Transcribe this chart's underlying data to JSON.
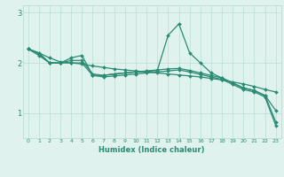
{
  "line1": {
    "x": [
      0,
      1,
      2,
      3,
      4,
      5,
      6,
      7,
      8,
      9,
      10,
      11,
      12,
      13,
      14,
      15,
      16,
      17,
      18,
      19,
      20,
      21,
      22,
      23
    ],
    "y": [
      2.28,
      2.2,
      2.0,
      2.0,
      2.1,
      2.15,
      1.75,
      1.75,
      1.78,
      1.8,
      1.82,
      1.83,
      1.85,
      2.55,
      2.78,
      2.2,
      2.0,
      1.8,
      1.7,
      1.6,
      1.5,
      1.45,
      1.35,
      1.05
    ]
  },
  "line2": {
    "x": [
      0,
      1,
      2,
      3,
      4,
      5,
      6,
      7,
      8,
      9,
      10,
      11,
      12,
      13,
      14,
      15,
      16,
      17,
      18,
      19,
      20,
      21,
      22,
      23
    ],
    "y": [
      2.28,
      2.18,
      2.0,
      2.0,
      2.05,
      2.05,
      1.78,
      1.75,
      1.78,
      1.8,
      1.82,
      1.84,
      1.86,
      1.88,
      1.89,
      1.85,
      1.8,
      1.75,
      1.7,
      1.6,
      1.5,
      1.45,
      1.35,
      0.82
    ]
  },
  "line3": {
    "x": [
      0,
      1,
      2,
      3,
      4,
      5,
      6,
      7,
      8,
      9,
      10,
      11,
      12,
      13,
      14,
      15,
      16,
      17,
      18,
      19,
      20,
      21,
      22,
      23
    ],
    "y": [
      2.28,
      2.15,
      2.0,
      2.0,
      2.0,
      2.0,
      1.75,
      1.72,
      1.74,
      1.76,
      1.78,
      1.8,
      1.82,
      1.84,
      1.86,
      1.82,
      1.77,
      1.72,
      1.67,
      1.57,
      1.47,
      1.42,
      1.32,
      0.75
    ]
  },
  "line4": {
    "x": [
      0,
      1,
      2,
      3,
      4,
      5,
      6,
      7,
      8,
      9,
      10,
      11,
      12,
      13,
      14,
      15,
      16,
      17,
      18,
      19,
      20,
      21,
      22,
      23
    ],
    "y": [
      2.28,
      2.2,
      2.1,
      2.02,
      2.0,
      1.98,
      1.94,
      1.91,
      1.88,
      1.86,
      1.84,
      1.82,
      1.8,
      1.78,
      1.76,
      1.74,
      1.72,
      1.69,
      1.66,
      1.62,
      1.58,
      1.53,
      1.47,
      1.42
    ]
  },
  "line_color": "#2a8a72",
  "marker": "D",
  "markersize": 2.0,
  "linewidth": 0.9,
  "bg_color": "#dff2ee",
  "grid_color": "#b8ddd7",
  "xlabel": "Humidex (Indice chaleur)",
  "xlim": [
    -0.5,
    23.5
  ],
  "ylim": [
    0.5,
    3.15
  ],
  "yticks": [
    1,
    2,
    3
  ],
  "xticks": [
    0,
    1,
    2,
    3,
    4,
    5,
    6,
    7,
    8,
    9,
    10,
    11,
    12,
    13,
    14,
    15,
    16,
    17,
    18,
    19,
    20,
    21,
    22,
    23
  ],
  "tick_color": "#2a8a72",
  "label_color": "#2a8a72"
}
